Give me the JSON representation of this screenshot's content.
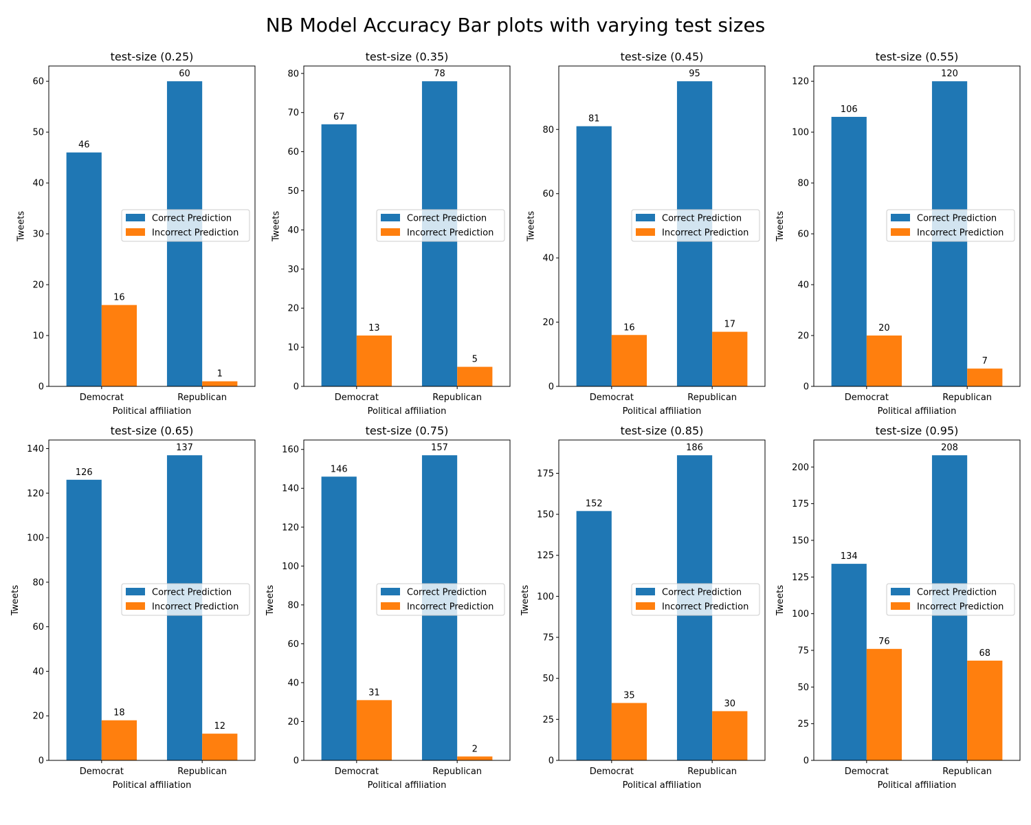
{
  "figure_title": "NB Model Accuracy Bar plots with varying test sizes",
  "colors": {
    "correct": "#1f77b4",
    "incorrect": "#ff7f0e"
  },
  "chart_data": [
    {
      "type": "bar",
      "title": "test-size (0.25)",
      "xlabel": "Political affiliation",
      "ylabel": "Tweets",
      "categories": [
        "Democrat",
        "Republican"
      ],
      "series": [
        {
          "name": "Correct Prediction",
          "values": [
            46,
            60
          ]
        },
        {
          "name": "Incorrect Prediction",
          "values": [
            16,
            1
          ]
        }
      ],
      "ylim": [
        0,
        63
      ],
      "yticks": [
        0,
        10,
        20,
        30,
        40,
        50,
        60
      ],
      "legend": "center-right"
    },
    {
      "type": "bar",
      "title": "test-size (0.35)",
      "xlabel": "Political affiliation",
      "ylabel": "Tweets",
      "categories": [
        "Democrat",
        "Republican"
      ],
      "series": [
        {
          "name": "Correct Prediction",
          "values": [
            67,
            78
          ]
        },
        {
          "name": "Incorrect Prediction",
          "values": [
            13,
            5
          ]
        }
      ],
      "ylim": [
        0,
        81.9
      ],
      "yticks": [
        0,
        10,
        20,
        30,
        40,
        50,
        60,
        70,
        80
      ],
      "legend": "center-right"
    },
    {
      "type": "bar",
      "title": "test-size (0.45)",
      "xlabel": "Political affiliation",
      "ylabel": "Tweets",
      "categories": [
        "Democrat",
        "Republican"
      ],
      "series": [
        {
          "name": "Correct Prediction",
          "values": [
            81,
            95
          ]
        },
        {
          "name": "Incorrect Prediction",
          "values": [
            16,
            17
          ]
        }
      ],
      "ylim": [
        0,
        99.75
      ],
      "yticks": [
        0,
        20,
        40,
        60,
        80
      ],
      "legend": "center-right"
    },
    {
      "type": "bar",
      "title": "test-size (0.55)",
      "xlabel": "Political affiliation",
      "ylabel": "Tweets",
      "categories": [
        "Democrat",
        "Republican"
      ],
      "series": [
        {
          "name": "Correct Prediction",
          "values": [
            106,
            120
          ]
        },
        {
          "name": "Incorrect Prediction",
          "values": [
            20,
            7
          ]
        }
      ],
      "ylim": [
        0,
        126
      ],
      "yticks": [
        0,
        20,
        40,
        60,
        80,
        100,
        120
      ],
      "legend": "center-right"
    },
    {
      "type": "bar",
      "title": "test-size (0.65)",
      "xlabel": "Political affiliation",
      "ylabel": "Tweets",
      "categories": [
        "Democrat",
        "Republican"
      ],
      "series": [
        {
          "name": "Correct Prediction",
          "values": [
            126,
            137
          ]
        },
        {
          "name": "Incorrect Prediction",
          "values": [
            18,
            12
          ]
        }
      ],
      "ylim": [
        0,
        143.85
      ],
      "yticks": [
        0,
        20,
        40,
        60,
        80,
        100,
        120,
        140
      ],
      "legend": "center-right"
    },
    {
      "type": "bar",
      "title": "test-size (0.75)",
      "xlabel": "Political affiliation",
      "ylabel": "Tweets",
      "categories": [
        "Democrat",
        "Republican"
      ],
      "series": [
        {
          "name": "Correct Prediction",
          "values": [
            146,
            157
          ]
        },
        {
          "name": "Incorrect Prediction",
          "values": [
            31,
            2
          ]
        }
      ],
      "ylim": [
        0,
        164.85
      ],
      "yticks": [
        0,
        20,
        40,
        60,
        80,
        100,
        120,
        140,
        160
      ],
      "legend": "center-right"
    },
    {
      "type": "bar",
      "title": "test-size (0.85)",
      "xlabel": "Political affiliation",
      "ylabel": "Tweets",
      "categories": [
        "Democrat",
        "Republican"
      ],
      "series": [
        {
          "name": "Correct Prediction",
          "values": [
            152,
            186
          ]
        },
        {
          "name": "Incorrect Prediction",
          "values": [
            35,
            30
          ]
        }
      ],
      "ylim": [
        0,
        195.3
      ],
      "yticks": [
        0,
        25,
        50,
        75,
        100,
        125,
        150,
        175
      ],
      "legend": "center-right"
    },
    {
      "type": "bar",
      "title": "test-size (0.95)",
      "xlabel": "Political affiliation",
      "ylabel": "Tweets",
      "categories": [
        "Democrat",
        "Republican"
      ],
      "series": [
        {
          "name": "Correct Prediction",
          "values": [
            134,
            208
          ]
        },
        {
          "name": "Incorrect Prediction",
          "values": [
            76,
            68
          ]
        }
      ],
      "ylim": [
        0,
        218.4
      ],
      "yticks": [
        0,
        25,
        50,
        75,
        100,
        125,
        150,
        175,
        200
      ],
      "legend": "center-right"
    }
  ]
}
